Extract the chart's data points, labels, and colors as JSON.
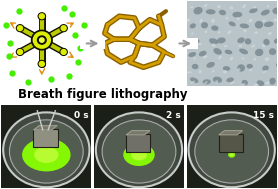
{
  "title_text": "Breath figure lithography",
  "title_fontsize": 8.5,
  "title_fontweight": "bold",
  "time_labels": [
    "0 s",
    "2 s",
    "15 s"
  ],
  "time_label_fontsize": 6.5,
  "background_color": "#ffffff",
  "figsize": [
    2.78,
    1.89
  ],
  "dpi": 100,
  "arrow_color": "#aaaaaa",
  "green_dot_color": "#44ee00",
  "orange_arrow_color": "#e08800",
  "molecule_yellow": "#cccc00",
  "molecule_black": "#222200",
  "sponge_frame_color": "#a07800",
  "sem_bg": "#c8d0d4",
  "bottom_bg": "#1a2018",
  "dish_outer": "#8a9088",
  "dish_inner": "#6a7868",
  "green_oil": "#88ff00",
  "sponge_cube_color": "#787868",
  "white": "#ffffff"
}
